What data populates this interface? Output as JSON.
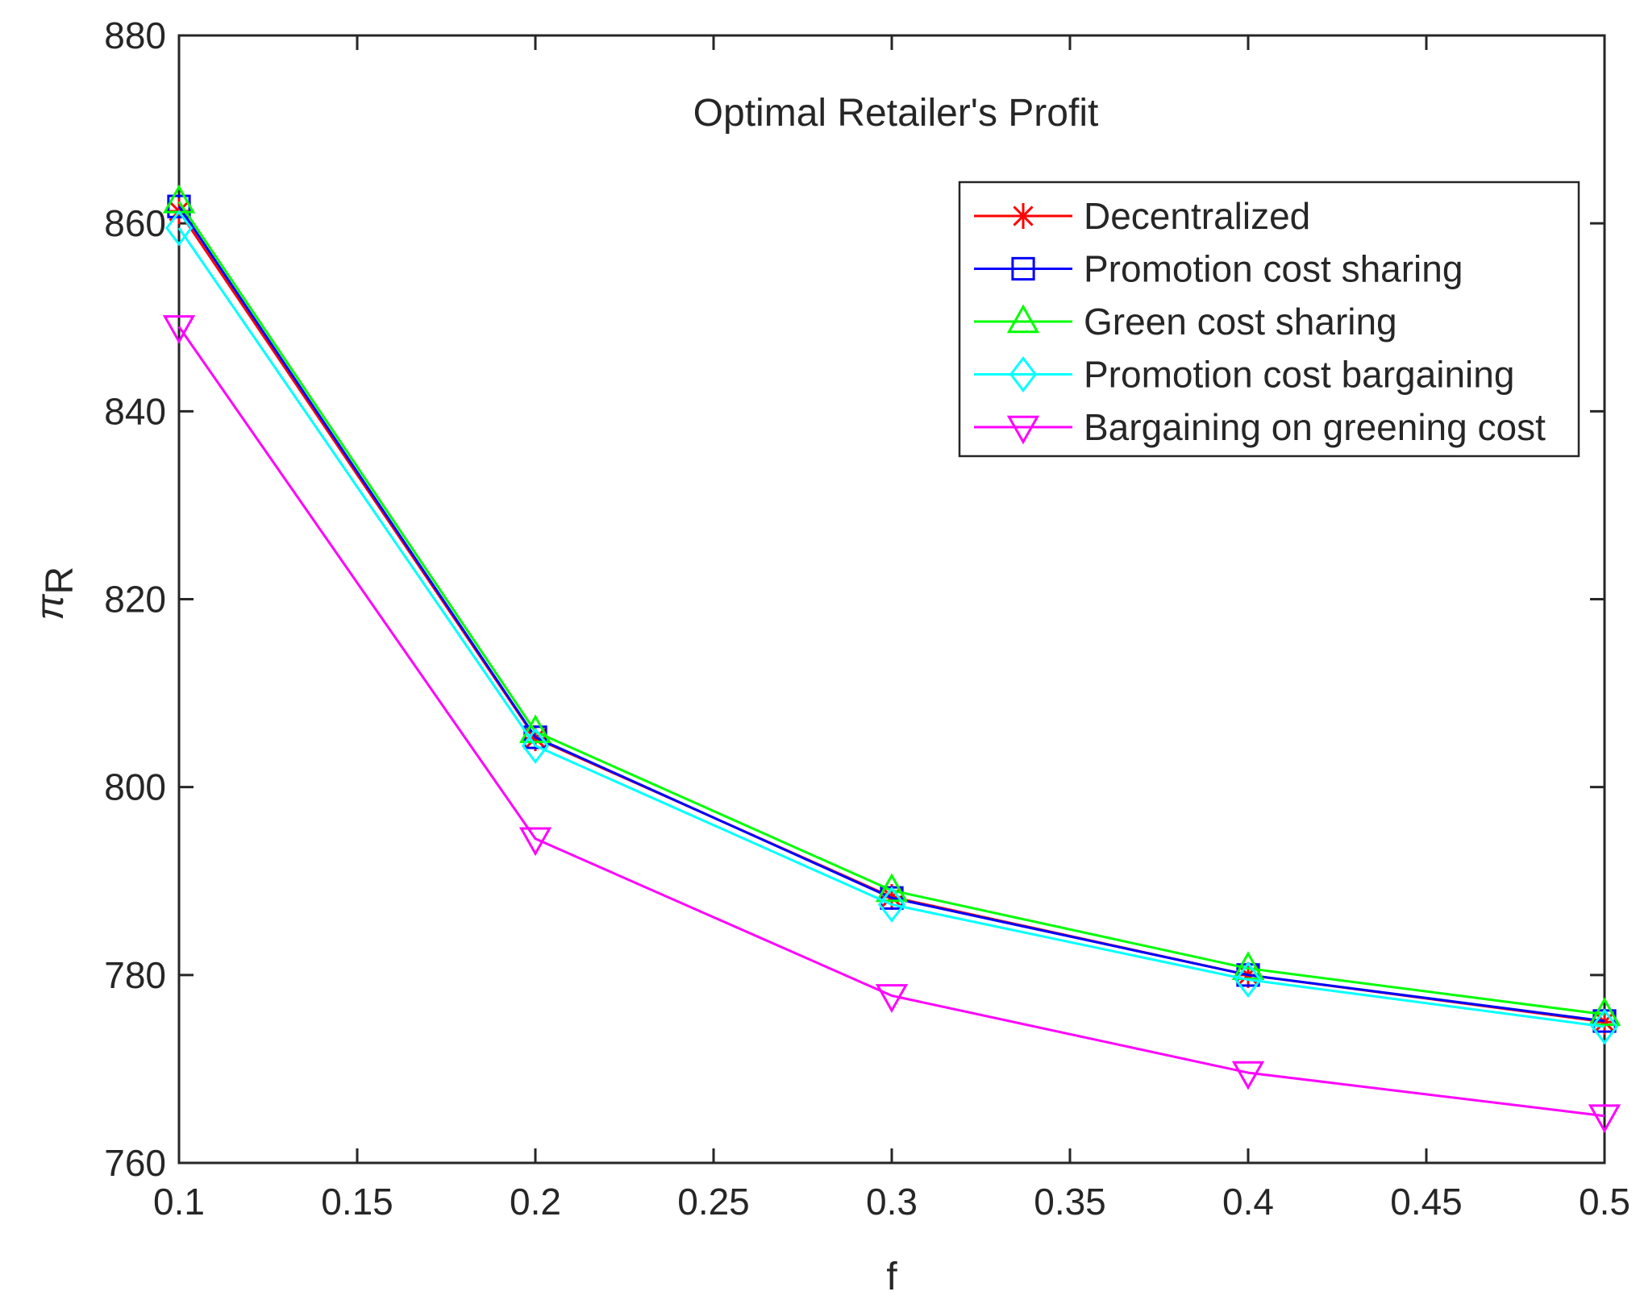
{
  "chart_data": {
    "type": "line",
    "title": "Optimal Retailer's Profit",
    "xlabel": "f",
    "ylabel": "π",
    "ylabel_subscript": "R",
    "x": [
      0.1,
      0.2,
      0.3,
      0.4,
      0.5
    ],
    "xlim": [
      0.1,
      0.5
    ],
    "ylim": [
      760,
      880
    ],
    "xticks": [
      0.1,
      0.15,
      0.2,
      0.25,
      0.3,
      0.35,
      0.4,
      0.45,
      0.5
    ],
    "xtick_labels": [
      "0.1",
      "0.15",
      "0.2",
      "0.25",
      "0.3",
      "0.35",
      "0.4",
      "0.45",
      "0.5"
    ],
    "yticks": [
      760,
      780,
      800,
      820,
      840,
      860,
      880
    ],
    "ytick_labels": [
      "760",
      "780",
      "800",
      "820",
      "840",
      "860",
      "880"
    ],
    "grid": false,
    "legend_position": "top-right",
    "series": [
      {
        "name": "Decentralized",
        "color": "#ff0000",
        "marker": "asterisk",
        "values": [
          861.3,
          805.2,
          788.3,
          780.0,
          775.0
        ]
      },
      {
        "name": "Promotion cost sharing",
        "color": "#0000ff",
        "marker": "square",
        "values": [
          861.8,
          805.3,
          788.2,
          780.0,
          775.1
        ]
      },
      {
        "name": "Green cost sharing",
        "color": "#00ff00",
        "marker": "triangle-up",
        "values": [
          862.3,
          805.9,
          789.0,
          780.7,
          775.8
        ]
      },
      {
        "name": "Promotion cost bargaining",
        "color": "#00ffff",
        "marker": "diamond",
        "values": [
          859.5,
          804.4,
          787.5,
          779.5,
          774.5
        ]
      },
      {
        "name": "Bargaining on greening cost",
        "color": "#ff00ff",
        "marker": "triangle-down",
        "values": [
          849.0,
          794.5,
          777.8,
          769.6,
          765.0
        ]
      }
    ]
  }
}
